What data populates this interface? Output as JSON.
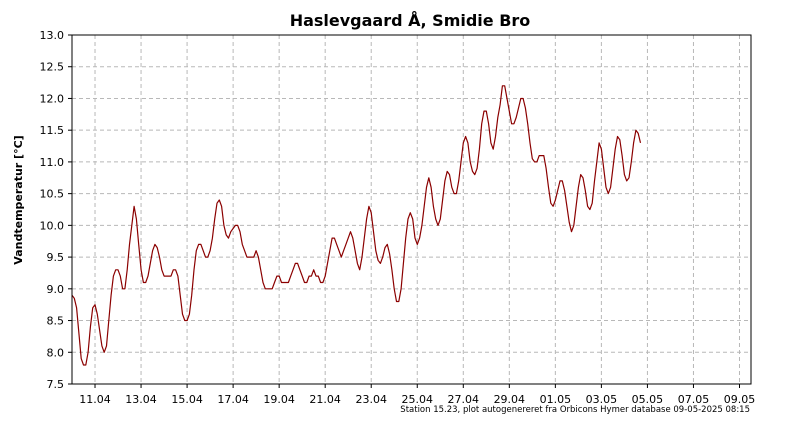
{
  "chart_data": {
    "type": "line",
    "title": "Haslevgaard Å, Smidie Bro",
    "ylabel": "Vandtemperatur [°C]",
    "xlabel": "",
    "ylim": [
      7.5,
      13.0
    ],
    "yticks": [
      "7.5",
      "8.0",
      "8.5",
      "9.0",
      "9.5",
      "10.0",
      "10.5",
      "11.0",
      "11.5",
      "12.0",
      "12.5",
      "13.0"
    ],
    "xlim": [
      10.0,
      39.5
    ],
    "xticks": [
      {
        "x": 11,
        "label": "11.04"
      },
      {
        "x": 13,
        "label": "13.04"
      },
      {
        "x": 15,
        "label": "15.04"
      },
      {
        "x": 17,
        "label": "17.04"
      },
      {
        "x": 19,
        "label": "19.04"
      },
      {
        "x": 21,
        "label": "21.04"
      },
      {
        "x": 23,
        "label": "23.04"
      },
      {
        "x": 25,
        "label": "25.04"
      },
      {
        "x": 27,
        "label": "27.04"
      },
      {
        "x": 29,
        "label": "29.04"
      },
      {
        "x": 31,
        "label": "01.05"
      },
      {
        "x": 33,
        "label": "03.05"
      },
      {
        "x": 35,
        "label": "05.05"
      },
      {
        "x": 37,
        "label": "07.05"
      },
      {
        "x": 39,
        "label": "09.05"
      }
    ],
    "grid": true,
    "line_color": "#8b0000",
    "series": [
      {
        "points": [
          [
            10.0,
            8.9
          ],
          [
            10.1,
            8.85
          ],
          [
            10.2,
            8.7
          ],
          [
            10.3,
            8.3
          ],
          [
            10.4,
            7.9
          ],
          [
            10.5,
            7.8
          ],
          [
            10.6,
            7.8
          ],
          [
            10.7,
            8.0
          ],
          [
            10.8,
            8.4
          ],
          [
            10.9,
            8.7
          ],
          [
            11.0,
            8.75
          ],
          [
            11.1,
            8.6
          ],
          [
            11.2,
            8.35
          ],
          [
            11.3,
            8.1
          ],
          [
            11.4,
            8.0
          ],
          [
            11.5,
            8.1
          ],
          [
            11.6,
            8.5
          ],
          [
            11.7,
            8.9
          ],
          [
            11.8,
            9.2
          ],
          [
            11.9,
            9.3
          ],
          [
            12.0,
            9.3
          ],
          [
            12.1,
            9.2
          ],
          [
            12.2,
            9.0
          ],
          [
            12.3,
            9.0
          ],
          [
            12.4,
            9.3
          ],
          [
            12.5,
            9.7
          ],
          [
            12.6,
            10.0
          ],
          [
            12.7,
            10.3
          ],
          [
            12.8,
            10.1
          ],
          [
            12.9,
            9.7
          ],
          [
            13.0,
            9.3
          ],
          [
            13.1,
            9.1
          ],
          [
            13.2,
            9.1
          ],
          [
            13.3,
            9.2
          ],
          [
            13.4,
            9.4
          ],
          [
            13.5,
            9.6
          ],
          [
            13.6,
            9.7
          ],
          [
            13.7,
            9.65
          ],
          [
            13.8,
            9.5
          ],
          [
            13.9,
            9.3
          ],
          [
            14.0,
            9.2
          ],
          [
            14.2,
            9.2
          ],
          [
            14.3,
            9.2
          ],
          [
            14.4,
            9.3
          ],
          [
            14.5,
            9.3
          ],
          [
            14.6,
            9.2
          ],
          [
            14.7,
            8.9
          ],
          [
            14.8,
            8.6
          ],
          [
            14.9,
            8.5
          ],
          [
            15.0,
            8.5
          ],
          [
            15.1,
            8.6
          ],
          [
            15.2,
            8.9
          ],
          [
            15.3,
            9.3
          ],
          [
            15.4,
            9.6
          ],
          [
            15.5,
            9.7
          ],
          [
            15.6,
            9.7
          ],
          [
            15.7,
            9.6
          ],
          [
            15.8,
            9.5
          ],
          [
            15.9,
            9.5
          ],
          [
            16.0,
            9.6
          ],
          [
            16.1,
            9.8
          ],
          [
            16.2,
            10.1
          ],
          [
            16.3,
            10.35
          ],
          [
            16.4,
            10.4
          ],
          [
            16.5,
            10.3
          ],
          [
            16.6,
            10.0
          ],
          [
            16.7,
            9.85
          ],
          [
            16.8,
            9.8
          ],
          [
            16.9,
            9.9
          ],
          [
            17.0,
            9.95
          ],
          [
            17.1,
            10.0
          ],
          [
            17.2,
            10.0
          ],
          [
            17.3,
            9.9
          ],
          [
            17.4,
            9.7
          ],
          [
            17.5,
            9.6
          ],
          [
            17.6,
            9.5
          ],
          [
            17.8,
            9.5
          ],
          [
            17.9,
            9.5
          ],
          [
            18.0,
            9.6
          ],
          [
            18.1,
            9.5
          ],
          [
            18.2,
            9.3
          ],
          [
            18.3,
            9.1
          ],
          [
            18.4,
            9.0
          ],
          [
            18.6,
            9.0
          ],
          [
            18.7,
            9.0
          ],
          [
            18.8,
            9.1
          ],
          [
            18.9,
            9.2
          ],
          [
            19.0,
            9.2
          ],
          [
            19.1,
            9.1
          ],
          [
            19.2,
            9.1
          ],
          [
            19.3,
            9.1
          ],
          [
            19.4,
            9.1
          ],
          [
            19.5,
            9.2
          ],
          [
            19.6,
            9.3
          ],
          [
            19.7,
            9.4
          ],
          [
            19.8,
            9.4
          ],
          [
            19.9,
            9.3
          ],
          [
            20.0,
            9.2
          ],
          [
            20.1,
            9.1
          ],
          [
            20.2,
            9.1
          ],
          [
            20.3,
            9.2
          ],
          [
            20.4,
            9.2
          ],
          [
            20.5,
            9.3
          ],
          [
            20.6,
            9.2
          ],
          [
            20.7,
            9.2
          ],
          [
            20.8,
            9.1
          ],
          [
            20.9,
            9.1
          ],
          [
            21.0,
            9.2
          ],
          [
            21.1,
            9.4
          ],
          [
            21.2,
            9.6
          ],
          [
            21.3,
            9.8
          ],
          [
            21.4,
            9.8
          ],
          [
            21.5,
            9.7
          ],
          [
            21.6,
            9.6
          ],
          [
            21.7,
            9.5
          ],
          [
            21.8,
            9.6
          ],
          [
            21.9,
            9.7
          ],
          [
            22.0,
            9.8
          ],
          [
            22.1,
            9.9
          ],
          [
            22.2,
            9.8
          ],
          [
            22.3,
            9.6
          ],
          [
            22.4,
            9.4
          ],
          [
            22.5,
            9.3
          ],
          [
            22.6,
            9.5
          ],
          [
            22.7,
            9.8
          ],
          [
            22.8,
            10.1
          ],
          [
            22.9,
            10.3
          ],
          [
            23.0,
            10.2
          ],
          [
            23.1,
            9.9
          ],
          [
            23.2,
            9.6
          ],
          [
            23.3,
            9.45
          ],
          [
            23.4,
            9.4
          ],
          [
            23.5,
            9.5
          ],
          [
            23.6,
            9.65
          ],
          [
            23.7,
            9.7
          ],
          [
            23.8,
            9.55
          ],
          [
            23.9,
            9.3
          ],
          [
            24.0,
            9.0
          ],
          [
            24.1,
            8.8
          ],
          [
            24.2,
            8.8
          ],
          [
            24.3,
            9.0
          ],
          [
            24.4,
            9.4
          ],
          [
            24.5,
            9.8
          ],
          [
            24.6,
            10.1
          ],
          [
            24.7,
            10.2
          ],
          [
            24.8,
            10.1
          ],
          [
            24.9,
            9.8
          ],
          [
            25.0,
            9.7
          ],
          [
            25.1,
            9.8
          ],
          [
            25.2,
            10.0
          ],
          [
            25.3,
            10.3
          ],
          [
            25.4,
            10.6
          ],
          [
            25.5,
            10.75
          ],
          [
            25.6,
            10.6
          ],
          [
            25.7,
            10.3
          ],
          [
            25.8,
            10.1
          ],
          [
            25.9,
            10.0
          ],
          [
            26.0,
            10.1
          ],
          [
            26.1,
            10.4
          ],
          [
            26.2,
            10.7
          ],
          [
            26.3,
            10.85
          ],
          [
            26.4,
            10.8
          ],
          [
            26.5,
            10.6
          ],
          [
            26.6,
            10.5
          ],
          [
            26.7,
            10.5
          ],
          [
            26.8,
            10.7
          ],
          [
            26.9,
            11.0
          ],
          [
            27.0,
            11.3
          ],
          [
            27.1,
            11.4
          ],
          [
            27.2,
            11.3
          ],
          [
            27.3,
            11.0
          ],
          [
            27.4,
            10.85
          ],
          [
            27.5,
            10.8
          ],
          [
            27.6,
            10.9
          ],
          [
            27.7,
            11.2
          ],
          [
            27.8,
            11.6
          ],
          [
            27.9,
            11.8
          ],
          [
            28.0,
            11.8
          ],
          [
            28.1,
            11.6
          ],
          [
            28.2,
            11.3
          ],
          [
            28.3,
            11.2
          ],
          [
            28.4,
            11.4
          ],
          [
            28.5,
            11.7
          ],
          [
            28.6,
            11.9
          ],
          [
            28.7,
            12.2
          ],
          [
            28.8,
            12.2
          ],
          [
            28.9,
            12.0
          ],
          [
            29.0,
            11.8
          ],
          [
            29.1,
            11.6
          ],
          [
            29.2,
            11.6
          ],
          [
            29.3,
            11.7
          ],
          [
            29.4,
            11.85
          ],
          [
            29.5,
            12.0
          ],
          [
            29.6,
            12.0
          ],
          [
            29.7,
            11.85
          ],
          [
            29.8,
            11.6
          ],
          [
            29.9,
            11.3
          ],
          [
            30.0,
            11.05
          ],
          [
            30.1,
            11.0
          ],
          [
            30.2,
            11.0
          ],
          [
            30.3,
            11.1
          ],
          [
            30.4,
            11.1
          ],
          [
            30.5,
            11.1
          ],
          [
            30.6,
            10.9
          ],
          [
            30.7,
            10.6
          ],
          [
            30.8,
            10.35
          ],
          [
            30.9,
            10.3
          ],
          [
            31.0,
            10.4
          ],
          [
            31.1,
            10.55
          ],
          [
            31.2,
            10.7
          ],
          [
            31.3,
            10.7
          ],
          [
            31.4,
            10.55
          ],
          [
            31.5,
            10.3
          ],
          [
            31.6,
            10.05
          ],
          [
            31.7,
            9.9
          ],
          [
            31.8,
            10.0
          ],
          [
            31.9,
            10.3
          ],
          [
            32.0,
            10.6
          ],
          [
            32.1,
            10.8
          ],
          [
            32.2,
            10.75
          ],
          [
            32.3,
            10.55
          ],
          [
            32.4,
            10.3
          ],
          [
            32.5,
            10.25
          ],
          [
            32.6,
            10.35
          ],
          [
            32.7,
            10.7
          ],
          [
            32.8,
            11.0
          ],
          [
            32.9,
            11.3
          ],
          [
            33.0,
            11.2
          ],
          [
            33.1,
            10.9
          ],
          [
            33.2,
            10.6
          ],
          [
            33.3,
            10.5
          ],
          [
            33.4,
            10.6
          ],
          [
            33.5,
            10.9
          ],
          [
            33.6,
            11.2
          ],
          [
            33.7,
            11.4
          ],
          [
            33.8,
            11.35
          ],
          [
            33.9,
            11.1
          ],
          [
            34.0,
            10.8
          ],
          [
            34.1,
            10.7
          ],
          [
            34.2,
            10.75
          ],
          [
            34.3,
            11.0
          ],
          [
            34.4,
            11.3
          ],
          [
            34.5,
            11.5
          ],
          [
            34.6,
            11.45
          ],
          [
            34.7,
            11.3
          ]
        ]
      }
    ],
    "footer": "Station 15.23, plot autogenereret fra Orbicons Hymer database 09-05-2025 08:15"
  }
}
